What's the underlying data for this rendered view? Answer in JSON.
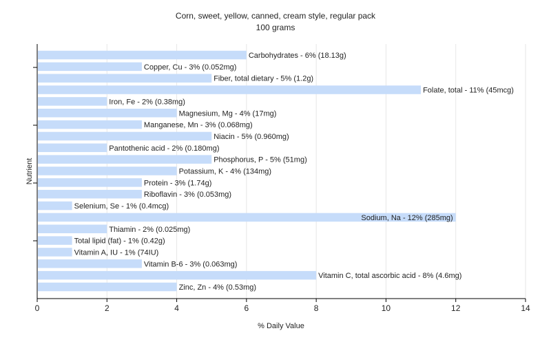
{
  "chart_data": {
    "type": "bar",
    "orientation": "horizontal",
    "title": "Corn, sweet, yellow, canned, cream style, regular pack",
    "subtitle": "100 grams",
    "xlabel": "% Daily Value",
    "ylabel": "Nutrient",
    "xlim": [
      0,
      14
    ],
    "xticks": [
      0,
      2,
      4,
      6,
      8,
      10,
      12,
      14
    ],
    "grid": true,
    "bar_color": "#c6dcfa",
    "categories": [
      "Carbohydrates",
      "Copper, Cu",
      "Fiber, total dietary",
      "Folate, total",
      "Iron, Fe",
      "Magnesium, Mg",
      "Manganese, Mn",
      "Niacin",
      "Pantothenic acid",
      "Phosphorus, P",
      "Potassium, K",
      "Protein",
      "Riboflavin",
      "Selenium, Se",
      "Sodium, Na",
      "Thiamin",
      "Total lipid (fat)",
      "Vitamin A, IU",
      "Vitamin B-6",
      "Vitamin C, total ascorbic acid",
      "Zinc, Zn"
    ],
    "values": [
      6,
      3,
      5,
      11,
      2,
      4,
      3,
      5,
      2,
      5,
      4,
      3,
      3,
      1,
      12,
      2,
      1,
      1,
      3,
      8,
      4
    ],
    "labels": [
      "Carbohydrates - 6% (18.13g)",
      "Copper, Cu - 3% (0.052mg)",
      "Fiber, total dietary - 5% (1.2g)",
      "Folate, total - 11% (45mcg)",
      "Iron, Fe - 2% (0.38mg)",
      "Magnesium, Mg - 4% (17mg)",
      "Manganese, Mn - 3% (0.068mg)",
      "Niacin - 5% (0.960mg)",
      "Pantothenic acid - 2% (0.180mg)",
      "Phosphorus, P - 5% (51mg)",
      "Potassium, K - 4% (134mg)",
      "Protein - 3% (1.74g)",
      "Riboflavin - 3% (0.053mg)",
      "Selenium, Se - 1% (0.4mcg)",
      "Sodium, Na - 12% (285mg)",
      "Thiamin - 2% (0.025mg)",
      "Total lipid (fat) - 1% (0.42g)",
      "Vitamin A, IU - 1% (74IU)",
      "Vitamin B-6 - 3% (0.063mg)",
      "Vitamin C, total ascorbic acid - 8% (4.6mg)",
      "Zinc, Zn - 4% (0.53mg)"
    ]
  }
}
